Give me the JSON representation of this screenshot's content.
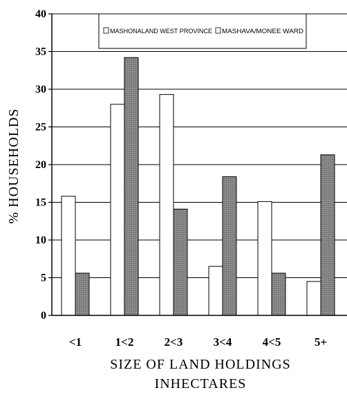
{
  "chart_data": {
    "type": "bar",
    "title": "",
    "xlabel": [
      "SIZE OF LAND HOLDINGS",
      "INHECTARES"
    ],
    "ylabel": "% HOUSEHOLDS",
    "categories": [
      "<1",
      "1<2",
      "2<3",
      "3<4",
      "4<5",
      "5+"
    ],
    "series": [
      {
        "name": "MASHONALAND WEST PROVINCE",
        "values": [
          15.8,
          28.0,
          29.3,
          6.5,
          15.1,
          4.5
        ],
        "color": "#ffffff"
      },
      {
        "name": "MASHAVA/MONEE WARD",
        "values": [
          5.6,
          34.2,
          14.1,
          18.4,
          5.6,
          21.3
        ],
        "color": "#7a7a7a"
      }
    ],
    "ylim": [
      0,
      40
    ],
    "yticks": [
      0,
      5,
      10,
      15,
      20,
      25,
      30,
      35,
      40
    ],
    "grid": true,
    "legend_position": "top"
  }
}
